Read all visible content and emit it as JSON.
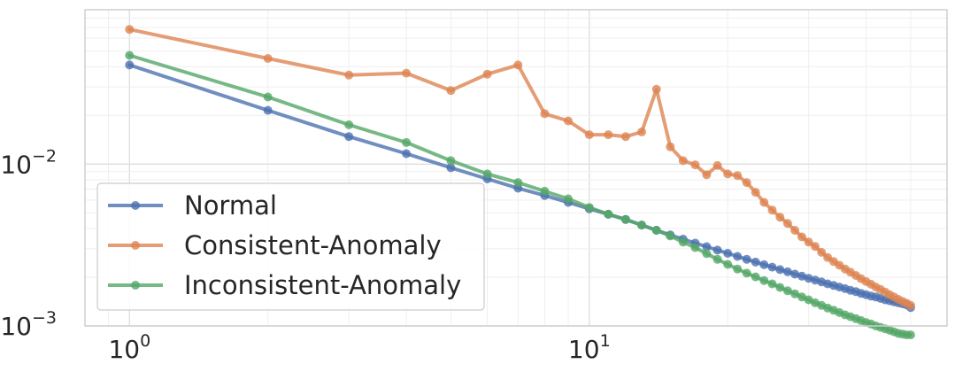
{
  "chart_data": {
    "type": "line",
    "title": "",
    "xlabel": "",
    "ylabel": "",
    "xscale": "log",
    "yscale": "log",
    "xlim": [
      0.8,
      60
    ],
    "ylim": [
      0.001,
      0.09
    ],
    "grid": true,
    "legend_position": "lower-left",
    "x_ticks": [
      {
        "value": 1,
        "base": "10",
        "exp": "0"
      },
      {
        "value": 10,
        "base": "10",
        "exp": "1"
      }
    ],
    "y_ticks": [
      {
        "value": 0.01,
        "base": "10",
        "exp": "−2"
      },
      {
        "value": 0.001,
        "base": "10",
        "exp": "−3"
      }
    ],
    "series": [
      {
        "name": "Normal",
        "color": "#4c72b0",
        "values": [
          0.041,
          0.0215,
          0.0148,
          0.0116,
          0.0095,
          0.0081,
          0.0071,
          0.0064,
          0.0058,
          0.0053,
          0.0049,
          0.00455,
          0.0042,
          0.0039,
          0.00365,
          0.00344,
          0.00325,
          0.00309,
          0.00294,
          0.00281,
          0.00269,
          0.00258,
          0.00248,
          0.00239,
          0.00231,
          0.00223,
          0.00216,
          0.00209,
          0.00203,
          0.00197,
          0.00192,
          0.00187,
          0.00182,
          0.00178,
          0.00174,
          0.0017,
          0.00166,
          0.00163,
          0.00159,
          0.00156,
          0.00153,
          0.00151,
          0.00148,
          0.00145,
          0.00143,
          0.00141,
          0.00139,
          0.00137,
          0.00135,
          0.0013
        ]
      },
      {
        "name": "Consistent-Anomaly",
        "color": "#dd8452",
        "values": [
          0.068,
          0.045,
          0.0355,
          0.0365,
          0.0285,
          0.036,
          0.041,
          0.0205,
          0.0185,
          0.0152,
          0.0152,
          0.0148,
          0.0158,
          0.029,
          0.0128,
          0.0105,
          0.0099,
          0.0086,
          0.0098,
          0.0087,
          0.0085,
          0.0077,
          0.0067,
          0.0058,
          0.0052,
          0.0047,
          0.0043,
          0.0039,
          0.00355,
          0.0033,
          0.0031,
          0.00285,
          0.00265,
          0.0025,
          0.00237,
          0.00225,
          0.00215,
          0.00205,
          0.00196,
          0.00188,
          0.00181,
          0.00174,
          0.00168,
          0.00162,
          0.00156,
          0.00151,
          0.00146,
          0.00142,
          0.00138,
          0.00134
        ]
      },
      {
        "name": "Inconsistent-Anomaly",
        "color": "#55a868",
        "values": [
          0.047,
          0.026,
          0.0175,
          0.0136,
          0.0105,
          0.0087,
          0.0077,
          0.0068,
          0.0061,
          0.0054,
          0.0049,
          0.00455,
          0.0042,
          0.0039,
          0.0036,
          0.0033,
          0.00305,
          0.0028,
          0.00258,
          0.0024,
          0.00225,
          0.00212,
          0.00201,
          0.00191,
          0.00182,
          0.00173,
          0.00165,
          0.00158,
          0.00151,
          0.00145,
          0.00139,
          0.00134,
          0.00129,
          0.00125,
          0.00121,
          0.00117,
          0.00114,
          0.00111,
          0.00108,
          0.00105,
          0.00103,
          0.001,
          0.00098,
          0.00096,
          0.00094,
          0.00092,
          0.0009,
          0.00089,
          0.00088,
          0.00088
        ]
      }
    ]
  }
}
